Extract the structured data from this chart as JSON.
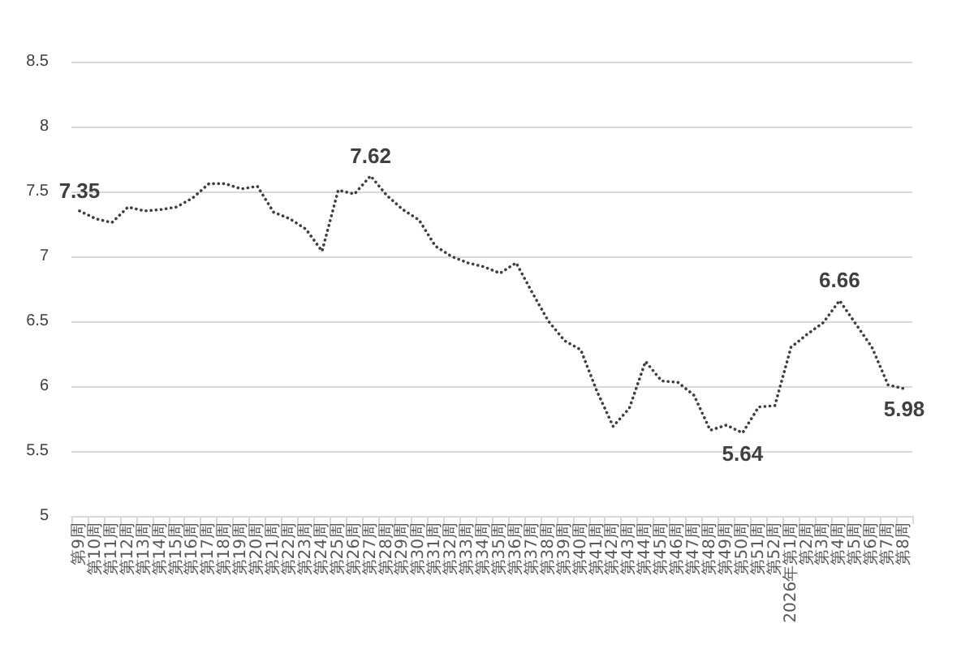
{
  "chart_data": {
    "type": "line",
    "categories": [
      "第9周",
      "第10周",
      "第11周",
      "第12周",
      "第13周",
      "第14周",
      "第15周",
      "第16周",
      "第17周",
      "第18周",
      "第19周",
      "第20周",
      "第21周",
      "第22周",
      "第23周",
      "第24周",
      "第25周",
      "第26周",
      "第27周",
      "第28周",
      "第29周",
      "第30周",
      "第31周",
      "第32周",
      "第33周",
      "第34周",
      "第35周",
      "第36周",
      "第37周",
      "第38周",
      "第39周",
      "第40周",
      "第41周",
      "第42周",
      "第43周",
      "第44周",
      "第45周",
      "第46周",
      "第47周",
      "第48周",
      "第49周",
      "第50周",
      "第51周",
      "第52周",
      "2026年第1周",
      "第2周",
      "第3周",
      "第4周",
      "第5周",
      "第6周",
      "第7周",
      "第8周"
    ],
    "series": [
      {
        "color": "#404040",
        "values": [
          7.35,
          7.29,
          7.26,
          7.38,
          7.35,
          7.36,
          7.38,
          7.45,
          7.56,
          7.56,
          7.52,
          7.54,
          7.34,
          7.29,
          7.21,
          7.04,
          7.51,
          7.48,
          7.62,
          7.47,
          7.36,
          7.28,
          7.08,
          7.0,
          6.95,
          6.92,
          6.87,
          6.95,
          6.72,
          6.5,
          6.35,
          6.28,
          5.96,
          5.69,
          5.83,
          6.19,
          6.04,
          6.03,
          5.93,
          5.66,
          5.7,
          5.64,
          5.84,
          5.85,
          6.3,
          6.4,
          6.49,
          6.66,
          6.48,
          6.3,
          6.01,
          5.98
        ],
        "value_labels": [
          "7.35",
          null,
          null,
          null,
          null,
          null,
          null,
          null,
          null,
          null,
          null,
          null,
          null,
          null,
          null,
          null,
          null,
          null,
          "7.62",
          null,
          null,
          null,
          null,
          null,
          null,
          null,
          null,
          null,
          null,
          null,
          null,
          null,
          null,
          null,
          null,
          null,
          null,
          null,
          null,
          null,
          null,
          "5.64",
          null,
          null,
          null,
          null,
          null,
          "6.66",
          null,
          null,
          null,
          "5.98"
        ]
      }
    ],
    "ylim": [
      5,
      8.5
    ],
    "yticks": [
      5,
      5.5,
      6,
      6.5,
      7,
      7.5,
      8,
      8.5
    ],
    "grid": "y",
    "line_style": "dotted",
    "marker": "none"
  }
}
